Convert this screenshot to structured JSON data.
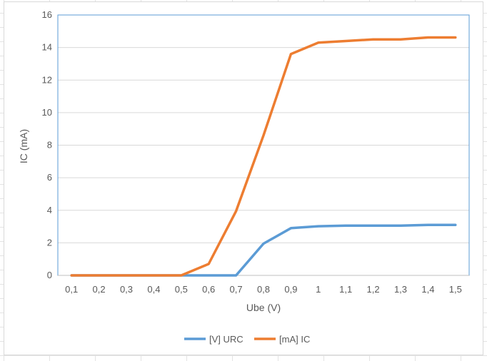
{
  "chart_data": {
    "type": "line",
    "xlabel": "Ube (V)",
    "ylabel": "IC (mA)",
    "categories": [
      "0,1",
      "0,2",
      "0,3",
      "0,4",
      "0,5",
      "0,6",
      "0,7",
      "0,8",
      "0,9",
      "1",
      "1,1",
      "1,2",
      "1,3",
      "1,4",
      "1,5"
    ],
    "ylim": [
      0,
      16
    ],
    "yticks": [
      0,
      2,
      4,
      6,
      8,
      10,
      12,
      14,
      16
    ],
    "grid": "horizontal",
    "legend_position": "bottom",
    "series": [
      {
        "name": "[V] URC",
        "color": "#5b9bd5",
        "values": [
          0,
          0,
          0,
          0,
          0,
          0,
          0,
          1.95,
          2.9,
          3.02,
          3.06,
          3.06,
          3.06,
          3.1,
          3.1
        ]
      },
      {
        "name": "[mA] IC",
        "color": "#ed7d31",
        "values": [
          0,
          0,
          0,
          0,
          0,
          0.7,
          3.95,
          8.6,
          13.6,
          14.3,
          14.4,
          14.5,
          14.5,
          14.62,
          14.62
        ]
      }
    ]
  }
}
